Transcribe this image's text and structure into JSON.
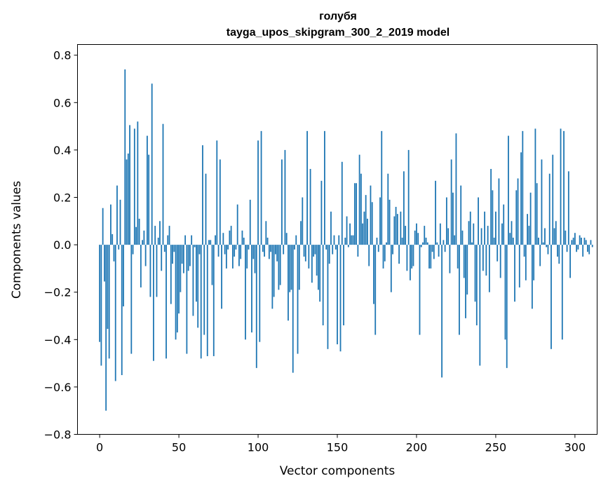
{
  "chart_data": {
    "type": "bar",
    "title": "голубя",
    "subtitle": "tayga_upos_skipgram_300_2_2019 model",
    "xlabel": "Vector components",
    "ylabel": "Components values",
    "xlim": [
      -14,
      314
    ],
    "ylim": [
      -0.8,
      0.845
    ],
    "x_ticks": [
      0,
      50,
      100,
      150,
      200,
      250,
      300
    ],
    "x_tick_labels": [
      "0",
      "50",
      "100",
      "150",
      "200",
      "250",
      "300"
    ],
    "y_ticks": [
      -0.8,
      -0.6,
      -0.4,
      -0.2,
      0.0,
      0.2,
      0.4,
      0.6,
      0.8
    ],
    "y_tick_labels": [
      "−0.8",
      "−0.6",
      "−0.4",
      "−0.2",
      "0.0",
      "0.2",
      "0.4",
      "0.6",
      "0.8"
    ],
    "grid": false,
    "bar_color": "#1f77b4",
    "series": [
      {
        "values": [
          -0.41,
          -0.51,
          0.155,
          -0.155,
          -0.7,
          -0.355,
          -0.48,
          0.17,
          0.045,
          -0.07,
          -0.575,
          0.25,
          -0.02,
          0.19,
          -0.55,
          -0.26,
          0.74,
          0.36,
          0.385,
          0.505,
          -0.46,
          -0.04,
          0.49,
          0.075,
          0.52,
          0.11,
          -0.18,
          0.02,
          0.06,
          -0.09,
          0.46,
          0.38,
          -0.22,
          0.68,
          -0.49,
          0.08,
          -0.22,
          0.03,
          0.1,
          -0.11,
          0.51,
          -0.03,
          -0.48,
          0.04,
          0.08,
          -0.25,
          -0.08,
          -0.03,
          -0.4,
          -0.37,
          -0.29,
          -0.2,
          -0.08,
          -0.12,
          0.04,
          -0.46,
          -0.11,
          -0.09,
          0.04,
          -0.3,
          -0.01,
          -0.24,
          -0.35,
          -0.04,
          -0.48,
          0.42,
          -0.38,
          0.3,
          -0.47,
          0.02,
          0.02,
          -0.17,
          -0.47,
          0.04,
          0.44,
          -0.05,
          0.36,
          -0.27,
          0.05,
          -0.04,
          -0.1,
          -0.02,
          0.06,
          0.08,
          -0.1,
          -0.05,
          -0.02,
          0.17,
          -0.09,
          -0.06,
          0.06,
          0.03,
          -0.4,
          -0.1,
          -0.02,
          0.19,
          -0.37,
          -0.06,
          -0.12,
          -0.52,
          0.44,
          -0.41,
          0.48,
          -0.03,
          -0.05,
          0.1,
          0.03,
          -0.06,
          -0.03,
          -0.27,
          -0.22,
          -0.04,
          -0.07,
          -0.19,
          -0.17,
          0.36,
          -0.04,
          0.4,
          0.05,
          -0.32,
          -0.2,
          -0.19,
          -0.54,
          -0.02,
          0.04,
          -0.46,
          -0.19,
          0.1,
          0.2,
          -0.05,
          -0.07,
          0.48,
          -0.1,
          0.32,
          -0.16,
          -0.05,
          -0.04,
          -0.13,
          -0.19,
          -0.24,
          0.27,
          -0.34,
          0.48,
          -0.02,
          -0.44,
          -0.08,
          0.14,
          -0.04,
          0.04,
          -0.02,
          -0.42,
          0.04,
          -0.45,
          0.35,
          -0.34,
          0.03,
          0.12,
          -0.01,
          0.09,
          0.04,
          0.04,
          0.26,
          0.26,
          -0.05,
          0.38,
          0.3,
          0.09,
          0.14,
          0.21,
          0.11,
          -0.09,
          0.25,
          0.18,
          -0.25,
          -0.38,
          0.03,
          -0.03,
          0.2,
          0.48,
          -0.1,
          -0.07,
          0.01,
          0.3,
          0.19,
          -0.2,
          -0.04,
          0.12,
          0.16,
          0.13,
          -0.08,
          0.14,
          0.03,
          0.31,
          0.08,
          -0.11,
          0.4,
          -0.15,
          -0.1,
          -0.09,
          0.06,
          0.09,
          0.05,
          -0.38,
          -0.01,
          0.01,
          0.08,
          0.03,
          0.01,
          -0.1,
          -0.1,
          -0.03,
          -0.06,
          0.27,
          0.01,
          -0.05,
          0.09,
          -0.56,
          0.02,
          -0.03,
          0.2,
          0.07,
          -0.12,
          0.36,
          0.22,
          0.04,
          0.47,
          -0.1,
          -0.38,
          0.25,
          0.06,
          -0.14,
          -0.31,
          -0.21,
          0.1,
          0.14,
          0.01,
          0.09,
          -0.24,
          -0.34,
          0.2,
          -0.51,
          0.07,
          -0.11,
          0.14,
          -0.13,
          0.08,
          -0.2,
          0.32,
          0.23,
          0.03,
          0.14,
          -0.07,
          0.28,
          -0.14,
          0.09,
          0.17,
          -0.4,
          -0.52,
          0.46,
          0.05,
          0.1,
          0.03,
          -0.24,
          0.23,
          0.28,
          -0.18,
          0.39,
          0.48,
          -0.05,
          -0.15,
          0.13,
          0.08,
          0.22,
          -0.27,
          -0.15,
          0.49,
          0.26,
          0.03,
          -0.09,
          0.36,
          0.01,
          0.07,
          -0.01,
          -0.04,
          0.3,
          -0.44,
          0.38,
          0.07,
          0.1,
          -0.05,
          -0.08,
          0.49,
          -0.4,
          0.48,
          0.06,
          -0.03,
          0.31,
          -0.14,
          0.02,
          0.03,
          0.05,
          -0.03,
          -0.02,
          0.04,
          0.03,
          -0.05,
          0.03,
          0.02,
          -0.03,
          -0.04,
          0.02,
          -0.01
        ]
      }
    ]
  }
}
